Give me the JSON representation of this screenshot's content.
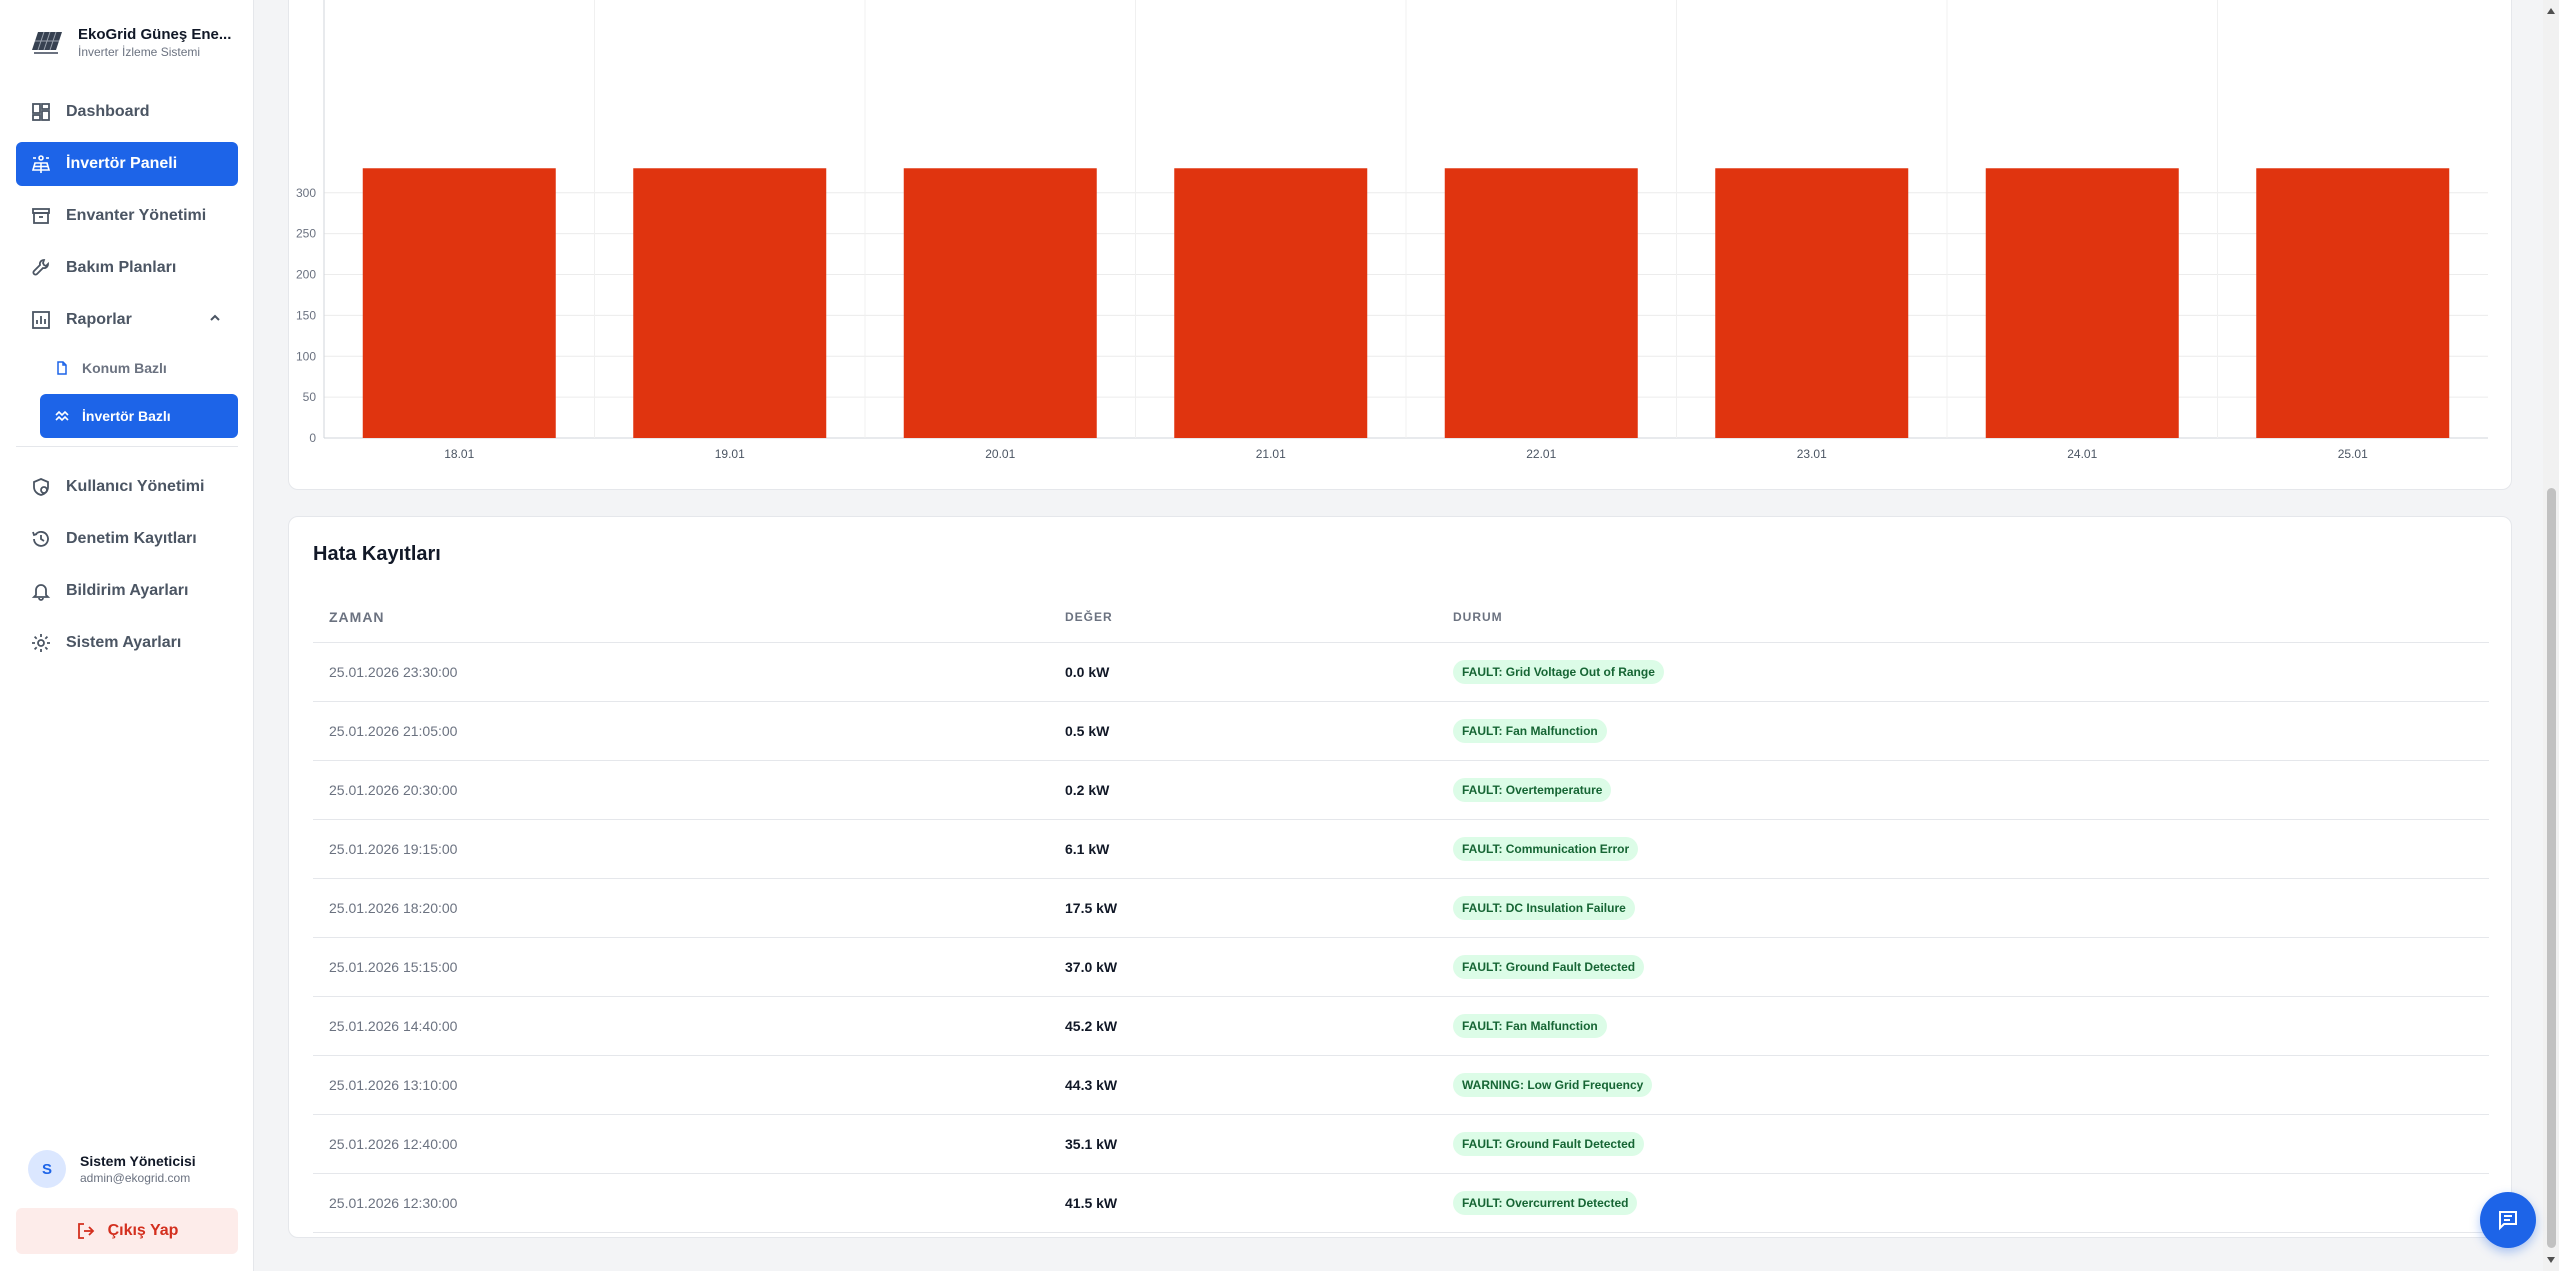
{
  "brand": {
    "title": "EkoGrid Güneş Ene...",
    "subtitle": "İnverter İzleme Sistemi"
  },
  "sidebar": {
    "items": [
      {
        "label": "Dashboard",
        "icon": "dashboard-icon"
      },
      {
        "label": "İnvertör Paneli",
        "icon": "solar-panel-icon",
        "active": true
      },
      {
        "label": "Envanter Yönetimi",
        "icon": "archive-icon"
      },
      {
        "label": "Bakım Planları",
        "icon": "wrench-icon"
      },
      {
        "label": "Raporlar",
        "icon": "bar-chart-icon",
        "expanded": true
      }
    ],
    "sub_items": [
      {
        "label": "Konum Bazlı",
        "icon": "document-icon"
      },
      {
        "label": "İnvertör Bazlı",
        "icon": "line-chart-icon",
        "active": true
      }
    ],
    "bottom_items": [
      {
        "label": "Kullanıcı Yönetimi",
        "icon": "user-shield-icon"
      },
      {
        "label": "Denetim Kayıtları",
        "icon": "history-icon"
      },
      {
        "label": "Bildirim Ayarları",
        "icon": "bell-icon"
      },
      {
        "label": "Sistem Ayarları",
        "icon": "gear-icon"
      }
    ]
  },
  "user": {
    "initial": "S",
    "name": "Sistem Yöneticisi",
    "email": "admin@ekogrid.com"
  },
  "logout_label": "Çıkış Yap",
  "chart_data": {
    "type": "bar",
    "categories": [
      "18.01",
      "19.01",
      "20.01",
      "21.01",
      "22.01",
      "23.01",
      "24.01",
      "25.01"
    ],
    "values": [
      330,
      330,
      330,
      330,
      330,
      330,
      330,
      330
    ],
    "y_ticks": [
      0,
      50,
      100,
      150,
      200,
      250,
      300
    ],
    "ylim": [
      0,
      320
    ],
    "bar_color": "#e0340f",
    "grid": true
  },
  "error_log": {
    "title": "Hata Kayıtları",
    "columns": [
      "ZAMAN",
      "DEĞER",
      "DURUM"
    ],
    "rows": [
      {
        "time": "25.01.2026 23:30:00",
        "value": "0.0 kW",
        "status": "FAULT: Grid Voltage Out of Range"
      },
      {
        "time": "25.01.2026 21:05:00",
        "value": "0.5 kW",
        "status": "FAULT: Fan Malfunction"
      },
      {
        "time": "25.01.2026 20:30:00",
        "value": "0.2 kW",
        "status": "FAULT: Overtemperature"
      },
      {
        "time": "25.01.2026 19:15:00",
        "value": "6.1 kW",
        "status": "FAULT: Communication Error"
      },
      {
        "time": "25.01.2026 18:20:00",
        "value": "17.5 kW",
        "status": "FAULT: DC Insulation Failure"
      },
      {
        "time": "25.01.2026 15:15:00",
        "value": "37.0 kW",
        "status": "FAULT: Ground Fault Detected"
      },
      {
        "time": "25.01.2026 14:40:00",
        "value": "45.2 kW",
        "status": "FAULT: Fan Malfunction"
      },
      {
        "time": "25.01.2026 13:10:00",
        "value": "44.3 kW",
        "status": "WARNING: Low Grid Frequency"
      },
      {
        "time": "25.01.2026 12:40:00",
        "value": "35.1 kW",
        "status": "FAULT: Ground Fault Detected"
      },
      {
        "time": "25.01.2026 12:30:00",
        "value": "41.5 kW",
        "status": "FAULT: Overcurrent Detected"
      }
    ]
  },
  "colors": {
    "accent": "#1d64e8",
    "danger": "#d32f1e",
    "badge_bg": "#dcfce7",
    "badge_text": "#166534"
  }
}
